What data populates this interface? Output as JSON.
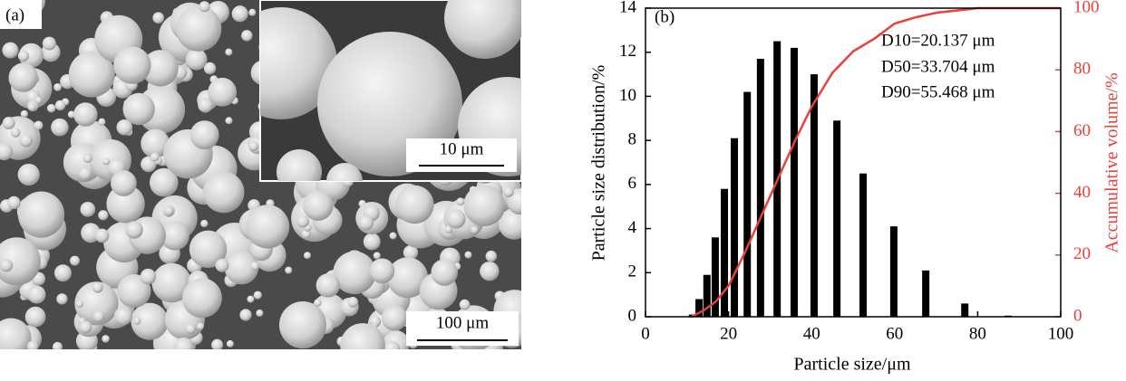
{
  "image_panel": {
    "label": "(a)",
    "inset_scale": "10 μm",
    "scale": "100 μm"
  },
  "chart_data": {
    "type": "bar",
    "label": "(b)",
    "x_label": "Particle size/μm",
    "y_label": "Particle size distribution/%",
    "y2_label": "Accumulative volume/%",
    "annotations": [
      "D10=20.137 μm",
      "D50=33.704 μm",
      "D90=55.468 μm"
    ],
    "xlim": [
      0,
      100
    ],
    "xticks": [
      0,
      20,
      40,
      60,
      80,
      100
    ],
    "ylim": [
      0,
      14
    ],
    "yticks": [
      0,
      2,
      4,
      6,
      8,
      10,
      12,
      14
    ],
    "y2lim": [
      0,
      100
    ],
    "y2ticks": [
      0,
      20,
      40,
      60,
      80,
      100
    ],
    "y2_color": "#e8413a",
    "series": [
      {
        "type": "bar",
        "color": "#000000",
        "x": [
          11.3,
          12.9,
          14.8,
          16.8,
          19.0,
          21.4,
          24.5,
          27.7,
          31.7,
          35.8,
          40.6,
          46.1,
          52.4,
          59.8,
          67.5,
          76.9,
          87.3
        ],
        "values": [
          0.1,
          0.8,
          1.9,
          3.6,
          5.8,
          8.1,
          10.2,
          11.7,
          12.5,
          12.2,
          11.0,
          8.9,
          6.5,
          4.1,
          2.1,
          0.6,
          0.05
        ]
      },
      {
        "type": "line",
        "color": "#e8413a",
        "axis": "y2",
        "x": [
          11,
          14,
          17,
          20,
          24,
          28,
          32,
          36,
          40,
          45,
          50,
          55,
          60,
          65,
          70,
          80,
          100
        ],
        "values": [
          0,
          2,
          5,
          10,
          21,
          33,
          45,
          57,
          68,
          79,
          86,
          90,
          95,
          97,
          98.5,
          100,
          100
        ]
      }
    ]
  }
}
